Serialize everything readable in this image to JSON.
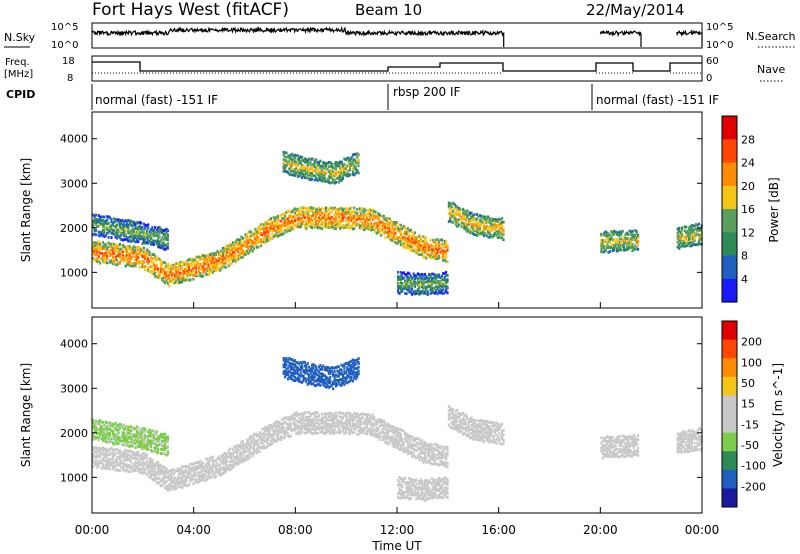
{
  "header": {
    "title": "Fort Hays West (fitACF)",
    "beam": "Beam 10",
    "date": "22/May/2014"
  },
  "top_panels": {
    "nsky_label": "N.Sky",
    "nsky_ticks": [
      "10^5",
      "10^0"
    ],
    "nsearch_label": "N.Search",
    "freq_label_1": "Freq.",
    "freq_label_2": "[MHz]",
    "freq_ticks": [
      "18",
      "8"
    ],
    "nave_label": "Nave",
    "nave_ticks": [
      "60",
      "0"
    ],
    "cpid_label": "CPID",
    "cpid_segments": [
      "normal (fast) -151 IF",
      "rbsp 200 IF",
      "normal (fast) -151 IF"
    ]
  },
  "x_axis": {
    "label": "Time UT",
    "ticks": [
      "00:00",
      "04:00",
      "08:00",
      "12:00",
      "16:00",
      "20:00",
      "00:00"
    ]
  },
  "colors": {
    "power": [
      "#1a1aff",
      "#1f5fbf",
      "#2e8b57",
      "#5aa05a",
      "#f5c518",
      "#ff8c00",
      "#ff4500",
      "#e00000"
    ],
    "velocity": [
      "#e00000",
      "#ff4500",
      "#ff8c00",
      "#f5c518",
      "#c8c8c8",
      "#c8c8c8",
      "#7ccd4a",
      "#2e8b57",
      "#1f5fbf",
      "#1a1aa0"
    ]
  },
  "chart_data": [
    {
      "type": "heatmap",
      "panel": "power",
      "ylabel": "Slant Range [km]",
      "xlabel": "Time UT",
      "yticks": [
        "1000",
        "2000",
        "3000",
        "4000"
      ],
      "ylim": [
        200,
        4600
      ],
      "xlim": [
        0,
        24
      ],
      "colorbar_label": "Power [dB]",
      "colorbar_ticks": [
        "4",
        "8",
        "12",
        "16",
        "20",
        "24",
        "28"
      ],
      "colorbar_range": [
        0,
        32
      ],
      "echo_bands": [
        {
          "t": [
            0,
            2,
            3,
            5,
            7,
            8,
            10,
            11,
            12,
            13,
            14
          ],
          "r": [
            1500,
            1350,
            950,
            1300,
            2000,
            2250,
            2250,
            2200,
            1900,
            1600,
            1500
          ],
          "power": 24
        },
        {
          "t": [
            0,
            1,
            2,
            3
          ],
          "r": [
            2100,
            2000,
            1900,
            1750
          ],
          "power": 14
        },
        {
          "t": [
            7.5,
            8.5,
            9.5,
            10.5
          ],
          "r": [
            3500,
            3350,
            3250,
            3500
          ],
          "power": 18
        },
        {
          "t": [
            14,
            15,
            16.2
          ],
          "r": [
            2400,
            2100,
            2000
          ],
          "power": 20
        },
        {
          "t": [
            20,
            21.5
          ],
          "r": [
            1700,
            1750
          ],
          "power": 18
        },
        {
          "t": [
            23,
            24
          ],
          "r": [
            1800,
            1900
          ],
          "power": 18
        },
        {
          "t": [
            12,
            13,
            14
          ],
          "r": [
            800,
            750,
            800
          ],
          "power": 14
        }
      ]
    },
    {
      "type": "heatmap",
      "panel": "velocity",
      "ylabel": "Slant Range [km]",
      "xlabel": "Time UT",
      "yticks": [
        "1000",
        "2000",
        "3000",
        "4000"
      ],
      "ylim": [
        200,
        4600
      ],
      "xlim": [
        0,
        24
      ],
      "colorbar_label": "Velocity [m s^-1]",
      "colorbar_ticks": [
        "200",
        "100",
        "50",
        "15",
        "-15",
        "-50",
        "-100",
        "-200"
      ],
      "colorbar_range": [
        -250,
        250
      ],
      "echo_bands": [
        {
          "t": [
            0,
            2,
            3,
            5,
            7,
            8,
            10,
            11,
            12,
            13,
            14
          ],
          "r": [
            1500,
            1350,
            950,
            1300,
            2000,
            2250,
            2250,
            2200,
            1900,
            1600,
            1500
          ],
          "velocity": 0
        },
        {
          "t": [
            0,
            1,
            2,
            3
          ],
          "r": [
            2100,
            2000,
            1900,
            1750
          ],
          "velocity": -60
        },
        {
          "t": [
            7.5,
            8.5,
            9.5,
            10.5
          ],
          "r": [
            3500,
            3350,
            3250,
            3500
          ],
          "velocity": -180
        },
        {
          "t": [
            14,
            15,
            16.2
          ],
          "r": [
            2400,
            2100,
            2000
          ],
          "velocity": 0
        },
        {
          "t": [
            20,
            21.5
          ],
          "r": [
            1700,
            1750
          ],
          "velocity": 0
        },
        {
          "t": [
            23,
            24
          ],
          "r": [
            1800,
            1900
          ],
          "velocity": 0
        },
        {
          "t": [
            12,
            13,
            14
          ],
          "r": [
            800,
            750,
            800
          ],
          "velocity": 0
        }
      ]
    }
  ]
}
